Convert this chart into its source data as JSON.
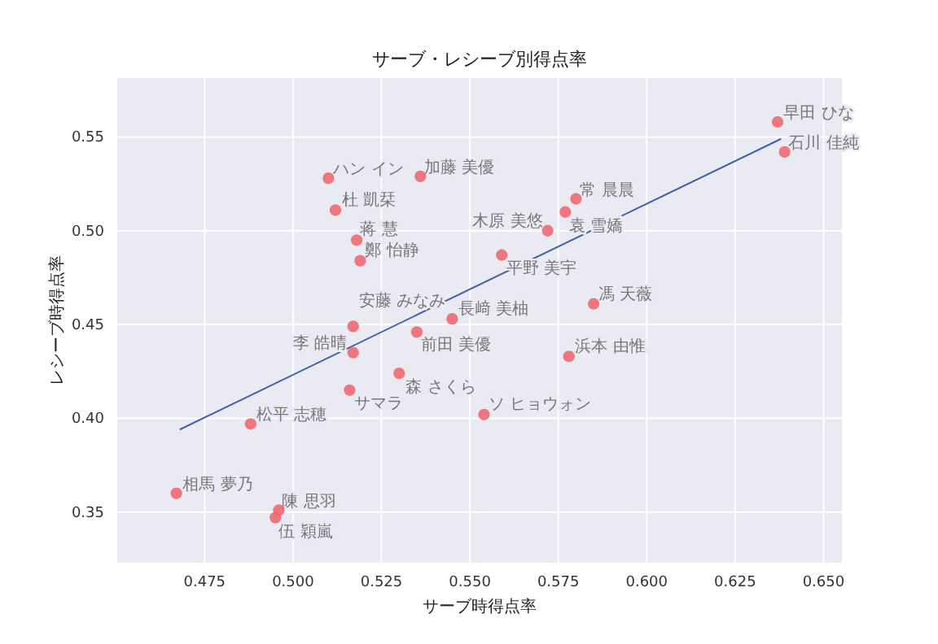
{
  "chart_data": {
    "type": "scatter",
    "title": "サーブ・レシーブ別得点率",
    "xlabel": "サーブ時得点率",
    "ylabel": "レシーブ時得点率",
    "xlim": [
      0.4503,
      0.6552
    ],
    "ylim": [
      0.323,
      0.5814
    ],
    "xticks": [
      {
        "value": 0.475,
        "label": "0.475"
      },
      {
        "value": 0.5,
        "label": "0.500"
      },
      {
        "value": 0.525,
        "label": "0.525"
      },
      {
        "value": 0.55,
        "label": "0.550"
      },
      {
        "value": 0.575,
        "label": "0.575"
      },
      {
        "value": 0.6,
        "label": "0.600"
      },
      {
        "value": 0.625,
        "label": "0.625"
      },
      {
        "value": 0.65,
        "label": "0.650"
      }
    ],
    "yticks": [
      0.35,
      {
        "value": 0.4,
        "label": "0.40"
      },
      0.45,
      {
        "value": 0.5,
        "label": "0.50"
      },
      0.55
    ],
    "grid": true,
    "marker": "circle",
    "series": [
      {
        "color": "#f0606a",
        "x": [
          0.51,
          0.536,
          0.512,
          0.518,
          0.519,
          0.559,
          0.58,
          0.577,
          0.572,
          0.637,
          0.639,
          0.585,
          0.578,
          0.554,
          0.545,
          0.517,
          0.535,
          0.517,
          0.53,
          0.516,
          0.488,
          0.467,
          0.496,
          0.495
        ],
        "values": [
          0.528,
          0.529,
          0.511,
          0.495,
          0.484,
          0.487,
          0.517,
          0.51,
          0.5,
          0.558,
          0.542,
          0.461,
          0.433,
          0.402,
          0.453,
          0.449,
          0.446,
          0.435,
          0.424,
          0.415,
          0.397,
          0.36,
          0.351,
          0.347
        ]
      },
      {
        "type": "line",
        "color": "#4060b0",
        "marker": "none",
        "x": [
          0.468,
          0.638
        ],
        "values": [
          0.394,
          0.549
        ]
      }
    ],
    "annotations": [
      {
        "text": "ハン イン",
        "x": 0.51,
        "y": 0.5277
      },
      {
        "text": "加藤 美優",
        "x": 0.5356,
        "y": 0.5286
      },
      {
        "text": "杜 凱栞",
        "x": 0.5124,
        "y": 0.511
      },
      {
        "text": "蒋 慧",
        "x": 0.5176,
        "y": 0.4954
      },
      {
        "text": "鄭 怡静",
        "x": 0.519,
        "y": 0.4844
      },
      {
        "text": "平野 美宇",
        "x": 0.559,
        "y": 0.487
      },
      {
        "text": "常 晨晨",
        "x": 0.5798,
        "y": 0.5165
      },
      {
        "text": "袁 雪嬌",
        "x": 0.5767,
        "y": 0.5095
      },
      {
        "text": "木原 美悠",
        "x": 0.572,
        "y": 0.5
      },
      {
        "text": "早田 ひな",
        "x": 0.6373,
        "y": 0.5577
      },
      {
        "text": "石川 佳純",
        "x": 0.6387,
        "y": 0.5416
      },
      {
        "text": "馮 天薇",
        "x": 0.5849,
        "y": 0.461
      },
      {
        "text": "浜本 由惟",
        "x": 0.5784,
        "y": 0.433
      },
      {
        "text": "ソ ヒョウォン",
        "x": 0.5539,
        "y": 0.4022
      },
      {
        "text": "長﨑 美柚",
        "x": 0.5453,
        "y": 0.453
      },
      {
        "text": "安藤 みなみ",
        "x": 0.5172,
        "y": 0.4487
      },
      {
        "text": "前田 美優",
        "x": 0.5347,
        "y": 0.446
      },
      {
        "text": "李 皓晴",
        "x": 0.5167,
        "y": 0.435
      },
      {
        "text": "森 さくら",
        "x": 0.5305,
        "y": 0.4235
      },
      {
        "text": "サマラ",
        "x": 0.5158,
        "y": 0.4149
      },
      {
        "text": "松平 志穂",
        "x": 0.4882,
        "y": 0.3967
      },
      {
        "text": "相馬 夢乃",
        "x": 0.4674,
        "y": 0.3595
      },
      {
        "text": "陳 思羽",
        "x": 0.4955,
        "y": 0.3505
      },
      {
        "text": "伍 穎嵐",
        "x": 0.4946,
        "y": 0.3465
      }
    ]
  }
}
